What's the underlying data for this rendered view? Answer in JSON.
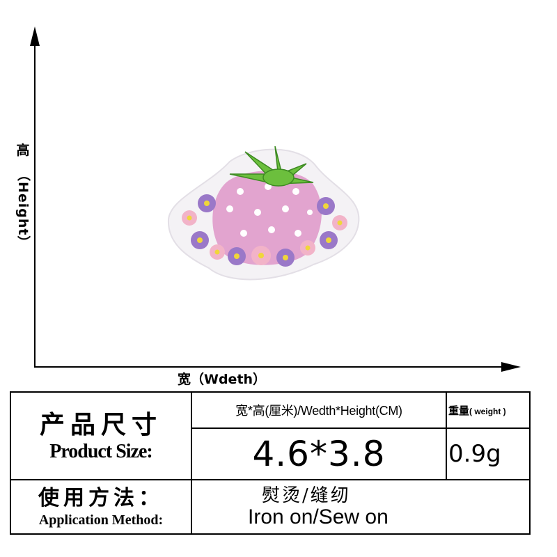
{
  "axis": {
    "vertical_label_cn": "高",
    "vertical_label_en": "（Height）",
    "horizontal_label": "宽（Wdeth）"
  },
  "product": {
    "image_name": "strawberry-embroidered-patch",
    "colors": {
      "pink": "#e4a6cf",
      "purple": "#9a78c8",
      "green": "#6cbf3d",
      "white": "#ffffff"
    }
  },
  "spec_table": {
    "title_cn": "产品尺寸",
    "title_en": "Product Size:",
    "size_header": "宽*高(厘米)/Wedth*Height(CM)",
    "weight_header_cn": "重量",
    "weight_header_en": "( weight )",
    "size_value": "4.6*3.8",
    "weight_value": "0.9g",
    "method_title_cn": "使用方法：",
    "method_title_en": "Application Method:",
    "method_value_cn": "熨烫/缝纫",
    "method_value_en": "Iron on/Sew on"
  }
}
